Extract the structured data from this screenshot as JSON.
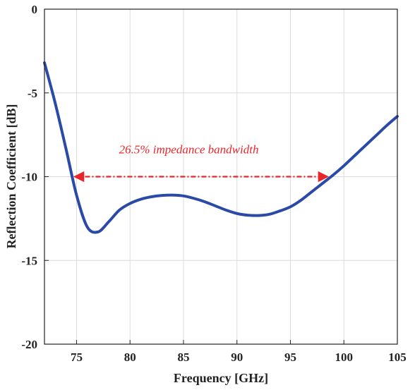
{
  "chart_data": {
    "type": "line",
    "xlabel": "Frequency [GHz]",
    "ylabel": "Reflection Coefficient [dB]",
    "xlim": [
      72,
      105
    ],
    "ylim": [
      -20,
      0
    ],
    "xticks": [
      75,
      80,
      85,
      90,
      95,
      100,
      105
    ],
    "yticks": [
      0,
      -5,
      -10,
      -15,
      -20
    ],
    "grid": true,
    "series": [
      {
        "color": "#2b4aa8",
        "x": [
          72,
          73,
          74,
          75,
          76,
          77,
          78,
          79,
          80,
          81,
          82,
          83,
          84,
          85,
          86,
          87,
          88,
          89,
          90,
          91,
          92,
          93,
          94,
          95,
          96,
          97,
          98,
          99,
          100,
          101,
          102,
          103,
          104,
          105
        ],
        "y": [
          -3.2,
          -5.6,
          -8.3,
          -11.1,
          -13.0,
          -13.3,
          -12.7,
          -12.0,
          -11.6,
          -11.35,
          -11.2,
          -11.12,
          -11.1,
          -11.15,
          -11.3,
          -11.5,
          -11.75,
          -12.0,
          -12.2,
          -12.3,
          -12.32,
          -12.25,
          -12.05,
          -11.8,
          -11.4,
          -10.9,
          -10.4,
          -9.9,
          -9.35,
          -8.75,
          -8.15,
          -7.55,
          -6.95,
          -6.4
        ]
      }
    ],
    "annotation": {
      "text": "26.5% impedance bandwidth",
      "color": "#e8262a",
      "arrow_x_start": 74.8,
      "arrow_x_end": 98.5,
      "arrow_y": -10,
      "text_x": 85.5,
      "text_y": -8.6
    }
  }
}
